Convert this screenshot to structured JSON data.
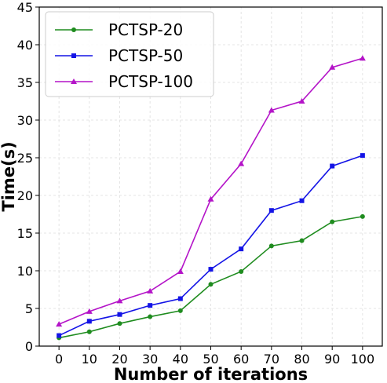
{
  "chart_data": {
    "type": "line",
    "title": "",
    "xlabel": "Number of iterations",
    "ylabel": "Time(s)",
    "x": [
      0,
      10,
      20,
      30,
      40,
      50,
      60,
      70,
      80,
      90,
      100
    ],
    "xlim": [
      -6.5,
      106.5
    ],
    "ylim": [
      0,
      45
    ],
    "xticks": [
      0,
      10,
      20,
      30,
      40,
      50,
      60,
      70,
      80,
      90,
      100
    ],
    "yticks": [
      0,
      5,
      10,
      15,
      20,
      25,
      30,
      35,
      40,
      45
    ],
    "grid": true,
    "legend_position": "top-left",
    "series": [
      {
        "name": "PCTSP-20",
        "color": "#1f8c1f",
        "marker": "circle",
        "values": [
          1.1,
          1.9,
          3.0,
          3.9,
          4.7,
          8.2,
          9.9,
          13.3,
          14.0,
          16.5,
          17.2
        ]
      },
      {
        "name": "PCTSP-50",
        "color": "#1414e6",
        "marker": "square",
        "values": [
          1.4,
          3.3,
          4.2,
          5.4,
          6.3,
          10.2,
          12.9,
          18.0,
          19.3,
          23.9,
          25.3
        ]
      },
      {
        "name": "PCTSP-100",
        "color": "#b414c8",
        "marker": "triangle",
        "values": [
          2.9,
          4.6,
          6.0,
          7.3,
          9.9,
          19.5,
          24.2,
          31.3,
          32.5,
          37.0,
          38.2
        ]
      }
    ]
  }
}
